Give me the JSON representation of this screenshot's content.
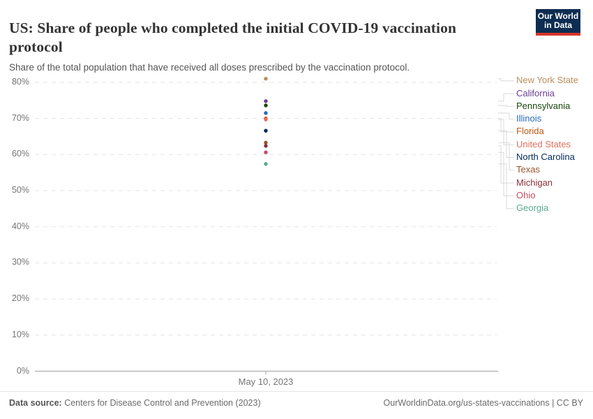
{
  "header": {
    "title": "US: Share of people who completed the initial COVID-19 vaccination protocol",
    "subtitle": "Share of the total population that have received all doses prescribed by the vaccination protocol.",
    "logo": {
      "line1": "Our World",
      "line2": "in Data"
    }
  },
  "chart_data": {
    "type": "scatter",
    "title": "US: Share of people who completed the initial COVID-19 vaccination protocol",
    "x_tick_label": "May 10, 2023",
    "date": "2023-05-10",
    "ylabel": "",
    "xlabel": "",
    "ylim": [
      0,
      85
    ],
    "grid": true,
    "legend_position": "right",
    "yticks": [
      {
        "value": 0,
        "label": "0%"
      },
      {
        "value": 10,
        "label": "10%"
      },
      {
        "value": 20,
        "label": "20%"
      },
      {
        "value": 30,
        "label": "30%"
      },
      {
        "value": 40,
        "label": "40%"
      },
      {
        "value": 50,
        "label": "50%"
      },
      {
        "value": 60,
        "label": "60%"
      },
      {
        "value": 70,
        "label": "70%"
      },
      {
        "value": 80,
        "label": "80%"
      }
    ],
    "series": [
      {
        "name": "New York State",
        "value": 81.0,
        "color": "#BC8E5A"
      },
      {
        "name": "California",
        "value": 74.8,
        "color": "#6D3E91"
      },
      {
        "name": "Pennsylvania",
        "value": 73.6,
        "color": "#18470F"
      },
      {
        "name": "Illinois",
        "value": 71.5,
        "color": "#286BBB"
      },
      {
        "name": "Florida",
        "value": 70.0,
        "color": "#C05917"
      },
      {
        "name": "United States",
        "value": 69.7,
        "color": "#E56E5A"
      },
      {
        "name": "North Carolina",
        "value": 66.6,
        "color": "#00295B"
      },
      {
        "name": "Texas",
        "value": 63.3,
        "color": "#9A5129"
      },
      {
        "name": "Michigan",
        "value": 62.4,
        "color": "#883039"
      },
      {
        "name": "Ohio",
        "value": 60.6,
        "color": "#C15065"
      },
      {
        "name": "Georgia",
        "value": 57.4,
        "color": "#58AC8C"
      }
    ]
  },
  "footer": {
    "source_label": "Data source:",
    "source_text": " Centers for Disease Control and Prevention (2023)",
    "link_text": "OurWorldinData.org/us-states-vaccinations | CC BY"
  }
}
